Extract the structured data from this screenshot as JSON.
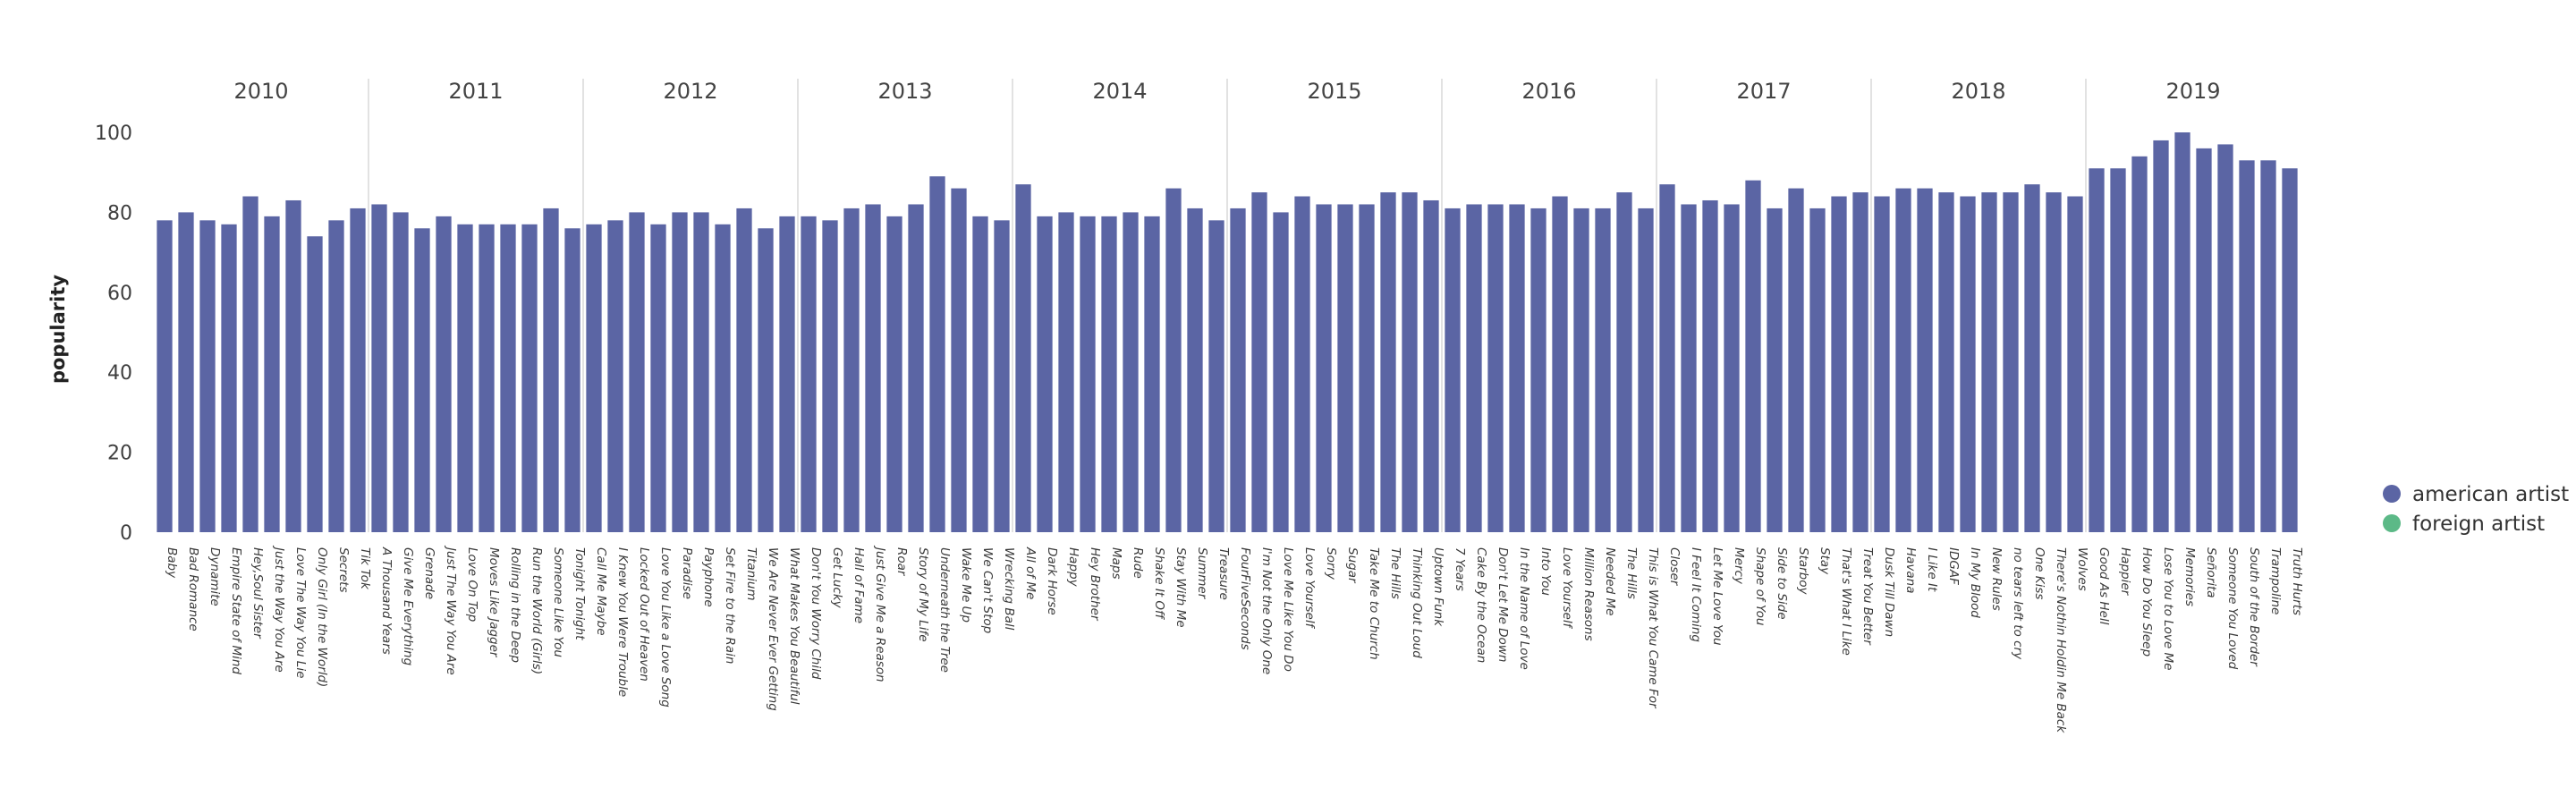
{
  "chart_data": {
    "type": "bar",
    "ylabel": "popularity",
    "ylim": [
      0,
      100
    ],
    "yticks": [
      0,
      20,
      40,
      60,
      80,
      100
    ],
    "colors": {
      "american artist": "#5b65a4",
      "foreign artist": "#5cb987"
    },
    "legend": {
      "position": "right",
      "entries": [
        {
          "label": "american artist",
          "color": "#5b65a4"
        },
        {
          "label": "foreign artist",
          "color": "#5cb987"
        }
      ]
    },
    "groups": [
      {
        "year": "2010",
        "bars": [
          {
            "title": "Baby",
            "value": 78
          },
          {
            "title": "Bad Romance",
            "value": 80
          },
          {
            "title": "Dynamite",
            "value": 78
          },
          {
            "title": "Empire State of Mind",
            "value": 77
          },
          {
            "title": "Hey,Soul Sister",
            "value": 84
          },
          {
            "title": "Just the Way You Are",
            "value": 79
          },
          {
            "title": "Love The Way You Lie",
            "value": 83
          },
          {
            "title": "Only Girl (In the World)",
            "value": 74
          },
          {
            "title": "Secrets",
            "value": 78
          },
          {
            "title": "Tik Tok",
            "value": 81
          }
        ]
      },
      {
        "year": "2011",
        "bars": [
          {
            "title": "A Thousand Years",
            "value": 82
          },
          {
            "title": "Give Me Everything",
            "value": 80
          },
          {
            "title": "Grenade",
            "value": 76
          },
          {
            "title": "Just The Way You Are",
            "value": 79
          },
          {
            "title": "Love On Top",
            "value": 77
          },
          {
            "title": "Moves Like Jagger",
            "value": 77
          },
          {
            "title": "Rolling in the Deep",
            "value": 77
          },
          {
            "title": "Run the World (Girls)",
            "value": 77
          },
          {
            "title": "Someone Like You",
            "value": 81
          },
          {
            "title": "Tonight Tonight",
            "value": 76
          }
        ]
      },
      {
        "year": "2012",
        "bars": [
          {
            "title": "Call Me Maybe",
            "value": 77
          },
          {
            "title": "I Knew You Were Trouble",
            "value": 78
          },
          {
            "title": "Locked Out of Heaven",
            "value": 80
          },
          {
            "title": "Love You Like a Love Song",
            "value": 77
          },
          {
            "title": "Paradise",
            "value": 80
          },
          {
            "title": "Payphone",
            "value": 80
          },
          {
            "title": "Set Fire to the Rain",
            "value": 77
          },
          {
            "title": "Titanium",
            "value": 81
          },
          {
            "title": "We Are Never Ever Getting",
            "value": 76
          },
          {
            "title": "What Makes You Beautiful",
            "value": 79
          }
        ]
      },
      {
        "year": "2013",
        "bars": [
          {
            "title": "Don't You Worry Child",
            "value": 79
          },
          {
            "title": "Get Lucky",
            "value": 78
          },
          {
            "title": "Hall of Fame",
            "value": 81
          },
          {
            "title": "Just Give Me a Reason",
            "value": 82
          },
          {
            "title": "Roar",
            "value": 79
          },
          {
            "title": "Story of My Life",
            "value": 82
          },
          {
            "title": "Underneath the Tree",
            "value": 89
          },
          {
            "title": "Wake Me Up",
            "value": 86
          },
          {
            "title": "We Can't Stop",
            "value": 79
          },
          {
            "title": "Wrecking Ball",
            "value": 78
          }
        ]
      },
      {
        "year": "2014",
        "bars": [
          {
            "title": "All of Me",
            "value": 87
          },
          {
            "title": "Dark Horse",
            "value": 79
          },
          {
            "title": "Happy",
            "value": 80
          },
          {
            "title": "Hey Brother",
            "value": 79
          },
          {
            "title": "Maps",
            "value": 79
          },
          {
            "title": "Rude",
            "value": 80
          },
          {
            "title": "Shake It Off",
            "value": 79
          },
          {
            "title": "Stay With Me",
            "value": 86
          },
          {
            "title": "Summer",
            "value": 81
          },
          {
            "title": "Treasure",
            "value": 78
          }
        ]
      },
      {
        "year": "2015",
        "bars": [
          {
            "title": "FourFiveSeconds",
            "value": 81
          },
          {
            "title": "I'm Not the Only One",
            "value": 85
          },
          {
            "title": "Love Me Like You Do",
            "value": 80
          },
          {
            "title": "Love Yourself",
            "value": 84
          },
          {
            "title": "Sorry",
            "value": 82
          },
          {
            "title": "Sugar",
            "value": 82
          },
          {
            "title": "Take Me to Church",
            "value": 82
          },
          {
            "title": "The Hills",
            "value": 85
          },
          {
            "title": "Thinking Out Loud",
            "value": 85
          },
          {
            "title": "Uptown Funk",
            "value": 83
          }
        ]
      },
      {
        "year": "2016",
        "bars": [
          {
            "title": "7 Years",
            "value": 81
          },
          {
            "title": "Cake By the Ocean",
            "value": 82
          },
          {
            "title": "Don't Let Me Down",
            "value": 82
          },
          {
            "title": "In the Name of Love",
            "value": 82
          },
          {
            "title": "Into You",
            "value": 81
          },
          {
            "title": "Love Yourself",
            "value": 84
          },
          {
            "title": "Million Reasons",
            "value": 81
          },
          {
            "title": "Needed Me",
            "value": 81
          },
          {
            "title": "The Hills",
            "value": 85
          },
          {
            "title": "This is What You Came For",
            "value": 81
          }
        ]
      },
      {
        "year": "2017",
        "bars": [
          {
            "title": "Closer",
            "value": 87
          },
          {
            "title": "I Feel It Coming",
            "value": 82
          },
          {
            "title": "Let Me Love You",
            "value": 83
          },
          {
            "title": "Mercy",
            "value": 82
          },
          {
            "title": "Shape of You",
            "value": 88
          },
          {
            "title": "Side to Side",
            "value": 81
          },
          {
            "title": "Starboy",
            "value": 86
          },
          {
            "title": "Stay",
            "value": 81
          },
          {
            "title": "That's What I Like",
            "value": 84
          },
          {
            "title": "Treat You Better",
            "value": 85
          }
        ]
      },
      {
        "year": "2018",
        "bars": [
          {
            "title": "Dusk Till Dawn",
            "value": 84
          },
          {
            "title": "Havana",
            "value": 86
          },
          {
            "title": "I Like It",
            "value": 86
          },
          {
            "title": "IDGAF",
            "value": 85
          },
          {
            "title": "In My Blood",
            "value": 84
          },
          {
            "title": "New Rules",
            "value": 85
          },
          {
            "title": "no tears left to cry",
            "value": 85
          },
          {
            "title": "One Kiss",
            "value": 87
          },
          {
            "title": "There's Nothin Holdin Me Back",
            "value": 85
          },
          {
            "title": "Wolves",
            "value": 84
          }
        ]
      },
      {
        "year": "2019",
        "bars": [
          {
            "title": "Good As Hell",
            "value": 91
          },
          {
            "title": "Happier",
            "value": 91
          },
          {
            "title": "How Do You Sleep",
            "value": 94
          },
          {
            "title": "Lose You to Love Me",
            "value": 98
          },
          {
            "title": "Memories",
            "value": 100
          },
          {
            "title": "Señorita",
            "value": 96
          },
          {
            "title": "Someone You Loved",
            "value": 97
          },
          {
            "title": "South of the Border",
            "value": 93
          },
          {
            "title": "Trampoline",
            "value": 93
          },
          {
            "title": "Truth Hurts",
            "value": 91
          }
        ]
      }
    ]
  }
}
